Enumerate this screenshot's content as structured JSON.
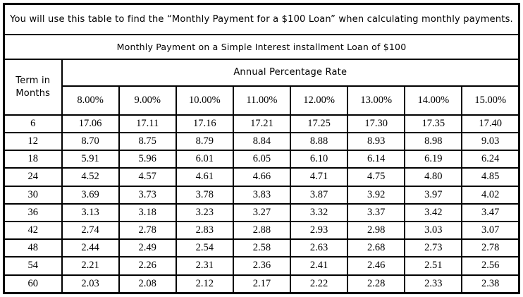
{
  "note": "You will use this table to find the “Monthly Payment for a $100 Loan” when calculating monthly payments.",
  "table": {
    "title": "Monthly Payment on a Simple Interest installment Loan of $100",
    "row_header": "Term in Months",
    "col_group_header": "Annual Percentage Rate",
    "columns": [
      "8.00%",
      "9.00%",
      "10.00%",
      "11.00%",
      "12.00%",
      "13.00%",
      "14.00%",
      "15.00%"
    ],
    "rows": [
      {
        "term": "6",
        "values": [
          "17.06",
          "17.11",
          "17.16",
          "17.21",
          "17.25",
          "17.30",
          "17.35",
          "17.40"
        ]
      },
      {
        "term": "12",
        "values": [
          "8.70",
          "8.75",
          "8.79",
          "8.84",
          "8.88",
          "8.93",
          "8.98",
          "9.03"
        ]
      },
      {
        "term": "18",
        "values": [
          "5.91",
          "5.96",
          "6.01",
          "6.05",
          "6.10",
          "6.14",
          "6.19",
          "6.24"
        ]
      },
      {
        "term": "24",
        "values": [
          "4.52",
          "4.57",
          "4.61",
          "4.66",
          "4.71",
          "4.75",
          "4.80",
          "4.85"
        ]
      },
      {
        "term": "30",
        "values": [
          "3.69",
          "3.73",
          "3.78",
          "3.83",
          "3.87",
          "3.92",
          "3.97",
          "4.02"
        ]
      },
      {
        "term": "36",
        "values": [
          "3.13",
          "3.18",
          "3.23",
          "3.27",
          "3.32",
          "3.37",
          "3.42",
          "3.47"
        ]
      },
      {
        "term": "42",
        "values": [
          "2.74",
          "2.78",
          "2.83",
          "2.88",
          "2.93",
          "2.98",
          "3.03",
          "3.07"
        ]
      },
      {
        "term": "48",
        "values": [
          "2.44",
          "2.49",
          "2.54",
          "2.58",
          "2.63",
          "2.68",
          "2.73",
          "2.78"
        ]
      },
      {
        "term": "54",
        "values": [
          "2.21",
          "2.26",
          "2.31",
          "2.36",
          "2.41",
          "2.46",
          "2.51",
          "2.56"
        ]
      },
      {
        "term": "60",
        "values": [
          "2.03",
          "2.08",
          "2.12",
          "2.17",
          "2.22",
          "2.28",
          "2.33",
          "2.38"
        ]
      }
    ]
  },
  "colors": {
    "border": "#000000",
    "text": "#000000",
    "background": "#ffffff"
  }
}
